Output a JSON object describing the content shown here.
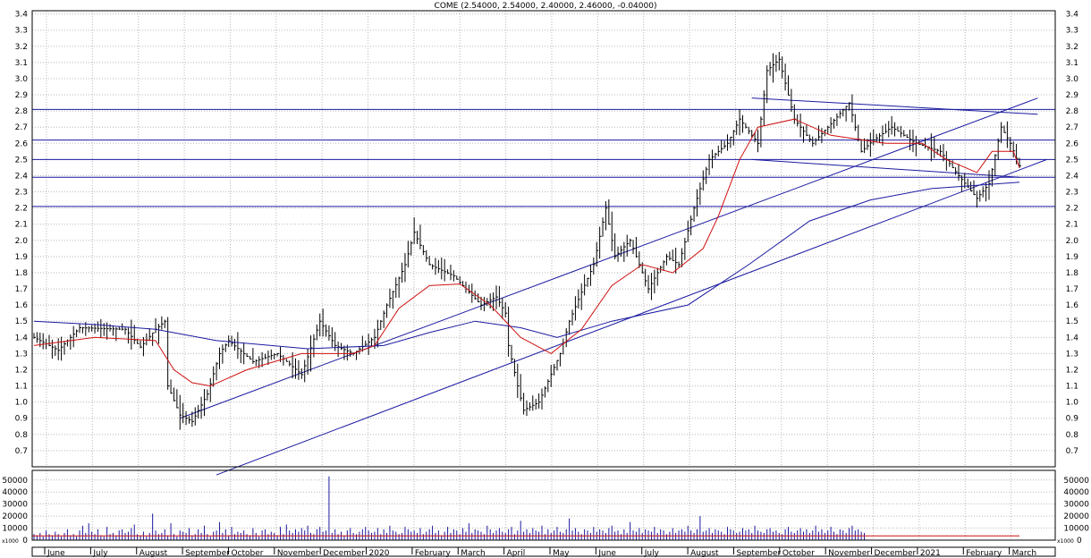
{
  "chart_data": {
    "type": "bar",
    "title": "COME (2.54000, 2.54000, 2.40000, 2.46000, -0.04000)",
    "price_axis": {
      "ylim": [
        0.6,
        3.42
      ],
      "ticks": [
        "0.7",
        "0.8",
        "0.9",
        "1.0",
        "1.1",
        "1.2",
        "1.3",
        "1.4",
        "1.5",
        "1.6",
        "1.7",
        "1.8",
        "1.9",
        "2.0",
        "2.1",
        "2.2",
        "2.3",
        "2.4",
        "2.5",
        "2.6",
        "2.7",
        "2.8",
        "2.9",
        "3.0",
        "3.1",
        "3.2",
        "3.3",
        "3.4"
      ]
    },
    "volume_axis": {
      "ylim": [
        0,
        58000
      ],
      "ticks": [
        "10000",
        "20000",
        "30000",
        "40000",
        "50000"
      ],
      "left_unit": "x1000",
      "right_unit": "x1000",
      "left_zero": "0",
      "right_zero": "0"
    },
    "x_axis_labels": [
      "June",
      "July",
      "August",
      "September",
      "October",
      "November",
      "December",
      "2020",
      "February",
      "March",
      "April",
      "May",
      "June",
      "July",
      "August",
      "September",
      "October",
      "November",
      "December",
      "2021",
      "February",
      "March"
    ],
    "horizontal_levels": [
      2.81,
      2.62,
      2.5,
      2.39,
      2.21
    ],
    "price_path": [
      [
        0,
        1.4
      ],
      [
        8,
        1.32
      ],
      [
        15,
        1.46
      ],
      [
        30,
        1.45
      ],
      [
        35,
        1.34
      ],
      [
        40,
        1.45
      ],
      [
        43,
        1.5
      ],
      [
        44,
        1.1
      ],
      [
        48,
        0.92
      ],
      [
        52,
        0.88
      ],
      [
        57,
        1.05
      ],
      [
        61,
        1.3
      ],
      [
        64,
        1.38
      ],
      [
        72,
        1.25
      ],
      [
        80,
        1.3
      ],
      [
        88,
        1.17
      ],
      [
        94,
        1.5
      ],
      [
        99,
        1.35
      ],
      [
        105,
        1.3
      ],
      [
        112,
        1.4
      ],
      [
        116,
        1.6
      ],
      [
        122,
        1.85
      ],
      [
        125,
        2.05
      ],
      [
        130,
        1.85
      ],
      [
        138,
        1.78
      ],
      [
        147,
        1.6
      ],
      [
        152,
        1.65
      ],
      [
        155,
        1.55
      ],
      [
        156,
        1.35
      ],
      [
        159,
        1.1
      ],
      [
        161,
        0.95
      ],
      [
        166,
        1.0
      ],
      [
        173,
        1.3
      ],
      [
        176,
        1.5
      ],
      [
        180,
        1.68
      ],
      [
        184,
        1.85
      ],
      [
        188,
        2.2
      ],
      [
        191,
        1.9
      ],
      [
        196,
        2.0
      ],
      [
        202,
        1.7
      ],
      [
        208,
        1.9
      ],
      [
        212,
        1.85
      ],
      [
        217,
        2.2
      ],
      [
        222,
        2.5
      ],
      [
        228,
        2.6
      ],
      [
        232,
        2.75
      ],
      [
        238,
        2.6
      ],
      [
        241,
        3.05
      ],
      [
        245,
        3.12
      ],
      [
        250,
        2.75
      ],
      [
        256,
        2.6
      ],
      [
        262,
        2.72
      ],
      [
        268,
        2.85
      ],
      [
        272,
        2.55
      ],
      [
        276,
        2.62
      ],
      [
        282,
        2.7
      ],
      [
        290,
        2.6
      ],
      [
        298,
        2.55
      ],
      [
        304,
        2.4
      ],
      [
        310,
        2.26
      ],
      [
        314,
        2.35
      ],
      [
        318,
        2.7
      ],
      [
        321,
        2.6
      ],
      [
        324,
        2.46
      ]
    ],
    "moving_averages": {
      "short_ma": [
        [
          0,
          1.35
        ],
        [
          20,
          1.4
        ],
        [
          40,
          1.38
        ],
        [
          46,
          1.2
        ],
        [
          52,
          1.12
        ],
        [
          58,
          1.1
        ],
        [
          70,
          1.2
        ],
        [
          88,
          1.3
        ],
        [
          105,
          1.3
        ],
        [
          112,
          1.35
        ],
        [
          120,
          1.58
        ],
        [
          130,
          1.72
        ],
        [
          140,
          1.73
        ],
        [
          150,
          1.6
        ],
        [
          160,
          1.4
        ],
        [
          170,
          1.3
        ],
        [
          180,
          1.45
        ],
        [
          190,
          1.72
        ],
        [
          200,
          1.85
        ],
        [
          210,
          1.8
        ],
        [
          220,
          1.95
        ],
        [
          225,
          2.15
        ],
        [
          232,
          2.5
        ],
        [
          238,
          2.7
        ],
        [
          250,
          2.75
        ],
        [
          262,
          2.65
        ],
        [
          280,
          2.6
        ],
        [
          292,
          2.6
        ],
        [
          300,
          2.5
        ],
        [
          310,
          2.42
        ],
        [
          315,
          2.55
        ],
        [
          322,
          2.55
        ],
        [
          324,
          2.45
        ]
      ],
      "long_ma": [
        [
          0,
          1.5
        ],
        [
          20,
          1.48
        ],
        [
          40,
          1.45
        ],
        [
          60,
          1.38
        ],
        [
          90,
          1.33
        ],
        [
          115,
          1.35
        ],
        [
          130,
          1.43
        ],
        [
          145,
          1.5
        ],
        [
          160,
          1.46
        ],
        [
          172,
          1.4
        ],
        [
          190,
          1.5
        ],
        [
          215,
          1.6
        ],
        [
          235,
          1.85
        ],
        [
          255,
          2.12
        ],
        [
          275,
          2.25
        ],
        [
          295,
          2.32
        ],
        [
          310,
          2.34
        ],
        [
          324,
          2.36
        ]
      ]
    },
    "trendlines": [
      [
        [
          48,
          0.9
        ],
        [
          330,
          2.88
        ]
      ],
      [
        [
          60,
          0.55
        ],
        [
          333,
          2.5
        ]
      ],
      [
        [
          236,
          2.88
        ],
        [
          330,
          2.78
        ]
      ],
      [
        [
          236,
          2.5
        ],
        [
          324,
          2.39
        ]
      ]
    ],
    "volume_values": [
      5,
      4,
      6,
      3,
      8,
      5,
      4,
      7,
      5,
      3,
      6,
      9,
      4,
      5,
      3,
      8,
      12,
      6,
      14,
      7,
      5,
      9,
      4,
      3,
      11,
      5,
      6,
      4,
      8,
      9,
      6,
      7,
      10,
      13,
      5,
      4,
      7,
      3,
      6,
      22,
      8,
      5,
      6,
      9,
      4,
      14,
      5,
      3,
      8,
      7,
      6,
      10,
      4,
      5,
      9,
      6,
      12,
      5,
      3,
      7,
      8,
      15,
      6,
      9,
      4,
      11,
      5,
      7,
      6,
      8,
      5,
      4,
      10,
      6,
      3,
      8,
      9,
      5,
      7,
      6,
      4,
      11,
      5,
      13,
      8,
      6,
      9,
      7,
      10,
      8,
      12,
      6,
      5,
      9,
      11,
      7,
      8,
      53,
      6,
      9,
      5,
      7,
      4,
      8,
      10,
      6,
      5,
      7,
      9,
      11,
      8,
      6,
      7,
      10,
      5,
      9,
      6,
      12,
      8,
      7,
      5,
      6,
      11,
      9,
      7,
      8,
      6,
      10,
      5,
      7,
      9,
      12,
      6,
      8,
      4,
      7,
      11,
      6,
      9,
      8,
      5,
      10,
      7,
      14,
      6,
      9,
      8,
      7,
      5,
      12,
      9,
      6,
      8,
      10,
      7,
      6,
      9,
      11,
      5,
      8,
      16,
      7,
      9,
      6,
      10,
      8,
      7,
      12,
      5,
      9,
      6,
      8,
      11,
      7,
      6,
      9,
      18,
      8,
      10,
      7,
      5,
      9,
      8,
      6,
      11,
      7,
      9,
      8,
      6,
      10,
      12,
      7,
      8,
      5,
      9,
      6,
      15,
      8,
      7,
      10,
      6,
      9,
      8,
      7,
      11,
      6,
      9,
      8,
      5,
      7,
      10,
      6,
      8,
      9,
      7,
      12,
      8,
      6,
      9,
      20,
      7,
      8,
      10,
      6,
      9,
      8,
      7,
      5,
      11,
      9,
      8,
      6,
      7,
      10,
      8,
      9,
      6,
      12,
      8,
      7,
      6,
      9,
      10,
      7,
      8,
      6,
      5,
      9,
      11,
      7,
      6,
      8,
      10,
      7,
      9,
      6,
      8,
      12,
      7,
      9,
      6,
      8,
      11,
      7,
      5,
      9,
      8,
      6,
      10,
      12,
      8,
      9,
      7,
      6
    ]
  }
}
